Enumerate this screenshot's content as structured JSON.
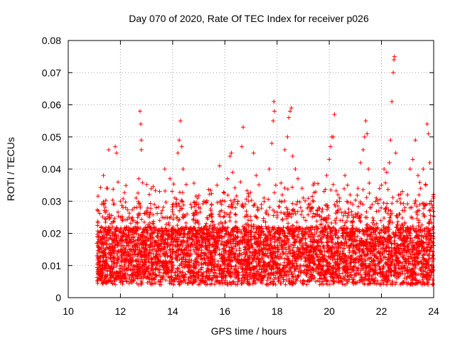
{
  "chart_data": {
    "type": "scatter",
    "title": "Day 070 of 2020, Rate Of TEC Index for receiver p026",
    "xlabel": "GPS time / hours",
    "ylabel": "ROTI / TECUs",
    "xlim": [
      10,
      24
    ],
    "ylim": [
      0,
      0.08
    ],
    "x_ticks": [
      10,
      12,
      14,
      16,
      18,
      20,
      22,
      24
    ],
    "x_tick_labels": [
      "10",
      "12",
      "14",
      "16",
      "18",
      "20",
      "22",
      "24"
    ],
    "y_ticks": [
      0,
      0.01,
      0.02,
      0.03,
      0.04,
      0.05,
      0.06,
      0.07,
      0.08
    ],
    "y_tick_labels": [
      "0",
      "0.01",
      "0.02",
      "0.03",
      "0.04",
      "0.05",
      "0.06",
      "0.07",
      "0.08"
    ],
    "grid": true,
    "marker": "+",
    "color": "#ff0000",
    "series": [
      {
        "name": "ROTI",
        "points": [
          [
            11.1,
            0.013
          ],
          [
            11.15,
            0.027
          ],
          [
            11.2,
            0.011
          ],
          [
            11.3,
            0.019
          ],
          [
            11.35,
            0.038
          ],
          [
            11.4,
            0.009
          ],
          [
            11.5,
            0.034
          ],
          [
            11.55,
            0.046
          ],
          [
            11.6,
            0.014
          ],
          [
            11.7,
            0.022
          ],
          [
            11.8,
            0.047
          ],
          [
            11.85,
            0.045
          ],
          [
            11.9,
            0.012
          ],
          [
            12.0,
            0.03
          ],
          [
            12.1,
            0.02
          ],
          [
            12.2,
            0.028
          ],
          [
            12.3,
            0.01
          ],
          [
            12.4,
            0.017
          ],
          [
            12.5,
            0.024
          ],
          [
            12.6,
            0.031
          ],
          [
            12.7,
            0.037
          ],
          [
            12.75,
            0.058
          ],
          [
            12.78,
            0.054
          ],
          [
            12.8,
            0.049
          ],
          [
            12.8,
            0.046
          ],
          [
            12.9,
            0.013
          ],
          [
            13.0,
            0.027
          ],
          [
            13.1,
            0.011
          ],
          [
            13.2,
            0.02
          ],
          [
            13.3,
            0.029
          ],
          [
            13.4,
            0.016
          ],
          [
            13.5,
            0.033
          ],
          [
            13.6,
            0.025
          ],
          [
            13.7,
            0.04
          ],
          [
            13.8,
            0.018
          ],
          [
            13.9,
            0.037
          ],
          [
            14.0,
            0.029
          ],
          [
            14.1,
            0.021
          ],
          [
            14.2,
            0.045
          ],
          [
            14.25,
            0.049
          ],
          [
            14.3,
            0.055
          ],
          [
            14.35,
            0.047
          ],
          [
            14.4,
            0.04
          ],
          [
            14.5,
            0.012
          ],
          [
            14.6,
            0.02
          ],
          [
            14.7,
            0.016
          ],
          [
            14.8,
            0.01
          ],
          [
            14.9,
            0.024
          ],
          [
            15.0,
            0.028
          ],
          [
            15.1,
            0.019
          ],
          [
            15.2,
            0.03
          ],
          [
            15.3,
            0.013
          ],
          [
            15.4,
            0.022
          ],
          [
            15.5,
            0.026
          ],
          [
            15.6,
            0.018
          ],
          [
            15.7,
            0.035
          ],
          [
            15.8,
            0.041
          ],
          [
            15.9,
            0.023
          ],
          [
            16.0,
            0.03
          ],
          [
            16.1,
            0.037
          ],
          [
            16.2,
            0.044
          ],
          [
            16.25,
            0.045
          ],
          [
            16.3,
            0.039
          ],
          [
            16.4,
            0.028
          ],
          [
            16.5,
            0.03
          ],
          [
            16.6,
            0.036
          ],
          [
            16.65,
            0.047
          ],
          [
            16.7,
            0.053
          ],
          [
            16.8,
            0.021
          ],
          [
            16.9,
            0.03
          ],
          [
            17.0,
            0.024
          ],
          [
            17.1,
            0.045
          ],
          [
            17.2,
            0.038
          ],
          [
            17.3,
            0.022
          ],
          [
            17.4,
            0.029
          ],
          [
            17.5,
            0.031
          ],
          [
            17.6,
            0.027
          ],
          [
            17.7,
            0.04
          ],
          [
            17.8,
            0.048
          ],
          [
            17.85,
            0.055
          ],
          [
            17.88,
            0.061
          ],
          [
            17.9,
            0.058
          ],
          [
            17.95,
            0.035
          ],
          [
            18.0,
            0.025
          ],
          [
            18.1,
            0.03
          ],
          [
            18.2,
            0.032
          ],
          [
            18.3,
            0.046
          ],
          [
            18.4,
            0.05
          ],
          [
            18.45,
            0.056
          ],
          [
            18.5,
            0.058
          ],
          [
            18.55,
            0.059
          ],
          [
            18.6,
            0.044
          ],
          [
            18.7,
            0.04
          ],
          [
            18.8,
            0.037
          ],
          [
            18.9,
            0.028
          ],
          [
            19.0,
            0.031
          ],
          [
            19.1,
            0.024
          ],
          [
            19.2,
            0.029
          ],
          [
            19.3,
            0.022
          ],
          [
            19.4,
            0.03
          ],
          [
            19.5,
            0.026
          ],
          [
            19.6,
            0.028
          ],
          [
            19.7,
            0.025
          ],
          [
            19.8,
            0.033
          ],
          [
            19.9,
            0.038
          ],
          [
            20.0,
            0.043
          ],
          [
            20.05,
            0.047
          ],
          [
            20.1,
            0.05
          ],
          [
            20.15,
            0.05
          ],
          [
            20.2,
            0.057
          ],
          [
            20.3,
            0.027
          ],
          [
            20.4,
            0.031
          ],
          [
            20.5,
            0.024
          ],
          [
            20.6,
            0.038
          ],
          [
            20.7,
            0.035
          ],
          [
            20.8,
            0.032
          ],
          [
            20.9,
            0.029
          ],
          [
            21.0,
            0.026
          ],
          [
            21.1,
            0.034
          ],
          [
            21.2,
            0.042
          ],
          [
            21.3,
            0.046
          ],
          [
            21.35,
            0.05
          ],
          [
            21.4,
            0.055
          ],
          [
            21.45,
            0.051
          ],
          [
            21.5,
            0.04
          ],
          [
            21.6,
            0.028
          ],
          [
            21.7,
            0.024
          ],
          [
            21.8,
            0.031
          ],
          [
            21.9,
            0.027
          ],
          [
            22.0,
            0.035
          ],
          [
            22.1,
            0.04
          ],
          [
            22.2,
            0.039
          ],
          [
            22.3,
            0.042
          ],
          [
            22.35,
            0.049
          ],
          [
            22.4,
            0.061
          ],
          [
            22.45,
            0.07
          ],
          [
            22.48,
            0.074
          ],
          [
            22.5,
            0.075
          ],
          [
            22.55,
            0.045
          ],
          [
            22.6,
            0.03
          ],
          [
            22.7,
            0.026
          ],
          [
            22.8,
            0.033
          ],
          [
            22.9,
            0.028
          ],
          [
            23.0,
            0.032
          ],
          [
            23.1,
            0.04
          ],
          [
            23.2,
            0.043
          ],
          [
            23.3,
            0.049
          ],
          [
            23.4,
            0.038
          ],
          [
            23.5,
            0.034
          ],
          [
            23.6,
            0.04
          ],
          [
            23.7,
            0.035
          ],
          [
            23.75,
            0.054
          ],
          [
            23.8,
            0.051
          ],
          [
            23.85,
            0.042
          ],
          [
            23.9,
            0.03
          ],
          [
            23.95,
            0.028
          ]
        ]
      }
    ]
  }
}
